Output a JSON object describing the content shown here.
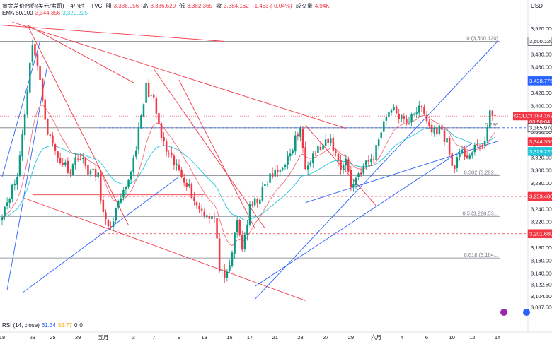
{
  "header": {
    "symbol": "黄金差价合约(美元/盎司)",
    "interval": "4小时",
    "source": "TVC",
    "open_label": "開",
    "open": "3,386.056",
    "high_label": "高",
    "high": "3,386.620",
    "low_label": "低",
    "low": "3,382.365",
    "close_label": "收",
    "close": "3,384.162",
    "change": "-1.463 (-0.04%)",
    "volume_label": "成交量",
    "volume": "4.94K"
  },
  "ema": {
    "label": "EMA 50/100",
    "v50": "3,344.356",
    "v100": "3,329.225"
  },
  "rsi": {
    "label": "RSI (14, close)",
    "v1": "61.34",
    "v2": "55.77",
    "v3": "0",
    "v4": "0"
  },
  "currency": "USD",
  "ticker_badge": "GOLD",
  "colors": {
    "bull": "#089981",
    "bear": "#f23645",
    "ema50": "#f23645",
    "ema100": "#26c6da",
    "trend": "#2962ff"
  },
  "chart_data": {
    "type": "candlestick",
    "ylim": [
      3082,
      3540
    ],
    "y_ticks": [
      "3,520.000",
      "3,500.000",
      "3,480.000",
      "3,460.000",
      "3,440.000",
      "3,420.000",
      "3,400.000",
      "3,380.000",
      "3,360.000",
      "3,340.000",
      "3,320.000",
      "3,300.000",
      "3,280.000",
      "3,260.000",
      "3,240.000",
      "3,220.000",
      "3,200.000",
      "3,180.000",
      "3,160.000",
      "3,140.000",
      "3,122.500",
      "3,104.500",
      "3,087.500"
    ],
    "y_tick_values": [
      3520,
      3500,
      3480,
      3460,
      3440,
      3420,
      3400,
      3380,
      3360,
      3340,
      3320,
      3300,
      3280,
      3260,
      3240,
      3220,
      3200,
      3180,
      3160,
      3140,
      3122.5,
      3104.5,
      3087.5
    ],
    "x_ticks": [
      "18",
      "23",
      "25",
      "29",
      "五月",
      "3",
      "7",
      "9",
      "13",
      "15",
      "17",
      "21",
      "23",
      "27",
      "29",
      "六月",
      "4",
      "6",
      "10",
      "12",
      "14"
    ],
    "x_tick_index": [
      0,
      12,
      20,
      30,
      40,
      52,
      60,
      70,
      80,
      90,
      98,
      108,
      118,
      128,
      138,
      148,
      158,
      168,
      178,
      186,
      196
    ],
    "fib_levels": [
      {
        "label": "0 (3,500.120)",
        "value": 3500.12
      },
      {
        "label": "0.236",
        "value": 3365.97
      },
      {
        "label": "0.382 (3,292...",
        "value": 3292
      },
      {
        "label": "0.5 (3,228.53...",
        "value": 3228.53
      },
      {
        "label": "0.618 (3,164...",
        "value": 3164
      }
    ],
    "price_labels": [
      {
        "text": "3,500.120",
        "value": 3500.12,
        "color": "#131722"
      },
      {
        "text": "3,438.775",
        "value": 3438.775,
        "color": "#2962ff"
      },
      {
        "text": "3,384.162",
        "value": 3384.162,
        "color": "#f23645"
      },
      {
        "text": "03:50:04",
        "value": 3375,
        "color": "#f23645"
      },
      {
        "text": "3,365.970",
        "value": 3365.97,
        "color": "#131722"
      },
      {
        "text": "3,344.356",
        "value": 3344.356,
        "color": "#f23645"
      },
      {
        "text": "3,329.225",
        "value": 3329.225,
        "color": "#26c6da"
      },
      {
        "text": "3,259.480",
        "value": 3259.48,
        "color": "#f23645"
      },
      {
        "text": "3,201.680",
        "value": 3201.68,
        "color": "#f23645"
      }
    ],
    "horizontal_lines": [
      {
        "value": 3438.775,
        "style": "dashed",
        "color": "#2962ff"
      },
      {
        "value": 3365.97,
        "style": "dashed",
        "color": "#2962ff"
      },
      {
        "value": 3259.48,
        "style": "dashed",
        "color": "#f23645"
      },
      {
        "value": 3201.68,
        "style": "dashed",
        "color": "#f23645"
      }
    ],
    "waypoints": [
      [
        0,
        3235
      ],
      [
        6,
        3290
      ],
      [
        9,
        3390
      ],
      [
        12,
        3500
      ],
      [
        14,
        3460
      ],
      [
        18,
        3360
      ],
      [
        22,
        3320
      ],
      [
        27,
        3300
      ],
      [
        30,
        3325
      ],
      [
        34,
        3300
      ],
      [
        38,
        3290
      ],
      [
        40,
        3232
      ],
      [
        42,
        3206
      ],
      [
        45,
        3236
      ],
      [
        49,
        3270
      ],
      [
        52,
        3318
      ],
      [
        55,
        3380
      ],
      [
        57,
        3430
      ],
      [
        60,
        3406
      ],
      [
        63,
        3350
      ],
      [
        66,
        3320
      ],
      [
        70,
        3300
      ],
      [
        73,
        3282
      ],
      [
        77,
        3245
      ],
      [
        80,
        3235
      ],
      [
        84,
        3225
      ],
      [
        86,
        3150
      ],
      [
        88,
        3125
      ],
      [
        90,
        3152
      ],
      [
        93,
        3220
      ],
      [
        95,
        3180
      ],
      [
        98,
        3240
      ],
      [
        102,
        3260
      ],
      [
        106,
        3290
      ],
      [
        110,
        3300
      ],
      [
        112,
        3315
      ],
      [
        114,
        3320
      ],
      [
        116,
        3350
      ],
      [
        118,
        3360
      ],
      [
        120,
        3310
      ],
      [
        124,
        3330
      ],
      [
        128,
        3340
      ],
      [
        130,
        3345
      ],
      [
        134,
        3305
      ],
      [
        136,
        3318
      ],
      [
        138,
        3275
      ],
      [
        141,
        3295
      ],
      [
        144,
        3310
      ],
      [
        147,
        3320
      ],
      [
        150,
        3365
      ],
      [
        153,
        3395
      ],
      [
        156,
        3390
      ],
      [
        160,
        3370
      ],
      [
        162,
        3390
      ],
      [
        166,
        3395
      ],
      [
        170,
        3360
      ],
      [
        173,
        3365
      ],
      [
        176,
        3345
      ],
      [
        178,
        3305
      ],
      [
        182,
        3325
      ],
      [
        185,
        3325
      ],
      [
        188,
        3335
      ],
      [
        191,
        3345
      ],
      [
        193,
        3385
      ],
      [
        195,
        3390
      ]
    ],
    "n_candles": 196,
    "last_close": 3384.162
  }
}
